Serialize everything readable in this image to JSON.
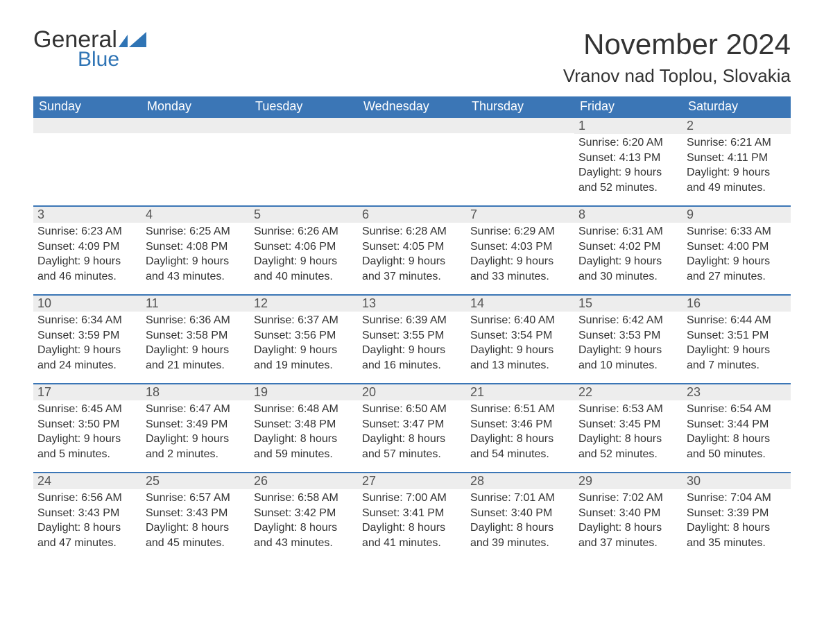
{
  "logo": {
    "word1": "General",
    "word2": "Blue"
  },
  "title": "November 2024",
  "location": "Vranov nad Toplou, Slovakia",
  "colors": {
    "header_bg": "#3b76b6",
    "header_text": "#ffffff",
    "daynum_bg": "#ededed",
    "text": "#333333",
    "logo_blue": "#2f74b5",
    "page_bg": "#ffffff"
  },
  "weekdays": [
    "Sunday",
    "Monday",
    "Tuesday",
    "Wednesday",
    "Thursday",
    "Friday",
    "Saturday"
  ],
  "weeks": [
    [
      {
        "empty": true
      },
      {
        "empty": true
      },
      {
        "empty": true
      },
      {
        "empty": true
      },
      {
        "empty": true
      },
      {
        "day": "1",
        "sunrise": "Sunrise: 6:20 AM",
        "sunset": "Sunset: 4:13 PM",
        "dl1": "Daylight: 9 hours",
        "dl2": "and 52 minutes."
      },
      {
        "day": "2",
        "sunrise": "Sunrise: 6:21 AM",
        "sunset": "Sunset: 4:11 PM",
        "dl1": "Daylight: 9 hours",
        "dl2": "and 49 minutes."
      }
    ],
    [
      {
        "day": "3",
        "sunrise": "Sunrise: 6:23 AM",
        "sunset": "Sunset: 4:09 PM",
        "dl1": "Daylight: 9 hours",
        "dl2": "and 46 minutes."
      },
      {
        "day": "4",
        "sunrise": "Sunrise: 6:25 AM",
        "sunset": "Sunset: 4:08 PM",
        "dl1": "Daylight: 9 hours",
        "dl2": "and 43 minutes."
      },
      {
        "day": "5",
        "sunrise": "Sunrise: 6:26 AM",
        "sunset": "Sunset: 4:06 PM",
        "dl1": "Daylight: 9 hours",
        "dl2": "and 40 minutes."
      },
      {
        "day": "6",
        "sunrise": "Sunrise: 6:28 AM",
        "sunset": "Sunset: 4:05 PM",
        "dl1": "Daylight: 9 hours",
        "dl2": "and 37 minutes."
      },
      {
        "day": "7",
        "sunrise": "Sunrise: 6:29 AM",
        "sunset": "Sunset: 4:03 PM",
        "dl1": "Daylight: 9 hours",
        "dl2": "and 33 minutes."
      },
      {
        "day": "8",
        "sunrise": "Sunrise: 6:31 AM",
        "sunset": "Sunset: 4:02 PM",
        "dl1": "Daylight: 9 hours",
        "dl2": "and 30 minutes."
      },
      {
        "day": "9",
        "sunrise": "Sunrise: 6:33 AM",
        "sunset": "Sunset: 4:00 PM",
        "dl1": "Daylight: 9 hours",
        "dl2": "and 27 minutes."
      }
    ],
    [
      {
        "day": "10",
        "sunrise": "Sunrise: 6:34 AM",
        "sunset": "Sunset: 3:59 PM",
        "dl1": "Daylight: 9 hours",
        "dl2": "and 24 minutes."
      },
      {
        "day": "11",
        "sunrise": "Sunrise: 6:36 AM",
        "sunset": "Sunset: 3:58 PM",
        "dl1": "Daylight: 9 hours",
        "dl2": "and 21 minutes."
      },
      {
        "day": "12",
        "sunrise": "Sunrise: 6:37 AM",
        "sunset": "Sunset: 3:56 PM",
        "dl1": "Daylight: 9 hours",
        "dl2": "and 19 minutes."
      },
      {
        "day": "13",
        "sunrise": "Sunrise: 6:39 AM",
        "sunset": "Sunset: 3:55 PM",
        "dl1": "Daylight: 9 hours",
        "dl2": "and 16 minutes."
      },
      {
        "day": "14",
        "sunrise": "Sunrise: 6:40 AM",
        "sunset": "Sunset: 3:54 PM",
        "dl1": "Daylight: 9 hours",
        "dl2": "and 13 minutes."
      },
      {
        "day": "15",
        "sunrise": "Sunrise: 6:42 AM",
        "sunset": "Sunset: 3:53 PM",
        "dl1": "Daylight: 9 hours",
        "dl2": "and 10 minutes."
      },
      {
        "day": "16",
        "sunrise": "Sunrise: 6:44 AM",
        "sunset": "Sunset: 3:51 PM",
        "dl1": "Daylight: 9 hours",
        "dl2": "and 7 minutes."
      }
    ],
    [
      {
        "day": "17",
        "sunrise": "Sunrise: 6:45 AM",
        "sunset": "Sunset: 3:50 PM",
        "dl1": "Daylight: 9 hours",
        "dl2": "and 5 minutes."
      },
      {
        "day": "18",
        "sunrise": "Sunrise: 6:47 AM",
        "sunset": "Sunset: 3:49 PM",
        "dl1": "Daylight: 9 hours",
        "dl2": "and 2 minutes."
      },
      {
        "day": "19",
        "sunrise": "Sunrise: 6:48 AM",
        "sunset": "Sunset: 3:48 PM",
        "dl1": "Daylight: 8 hours",
        "dl2": "and 59 minutes."
      },
      {
        "day": "20",
        "sunrise": "Sunrise: 6:50 AM",
        "sunset": "Sunset: 3:47 PM",
        "dl1": "Daylight: 8 hours",
        "dl2": "and 57 minutes."
      },
      {
        "day": "21",
        "sunrise": "Sunrise: 6:51 AM",
        "sunset": "Sunset: 3:46 PM",
        "dl1": "Daylight: 8 hours",
        "dl2": "and 54 minutes."
      },
      {
        "day": "22",
        "sunrise": "Sunrise: 6:53 AM",
        "sunset": "Sunset: 3:45 PM",
        "dl1": "Daylight: 8 hours",
        "dl2": "and 52 minutes."
      },
      {
        "day": "23",
        "sunrise": "Sunrise: 6:54 AM",
        "sunset": "Sunset: 3:44 PM",
        "dl1": "Daylight: 8 hours",
        "dl2": "and 50 minutes."
      }
    ],
    [
      {
        "day": "24",
        "sunrise": "Sunrise: 6:56 AM",
        "sunset": "Sunset: 3:43 PM",
        "dl1": "Daylight: 8 hours",
        "dl2": "and 47 minutes."
      },
      {
        "day": "25",
        "sunrise": "Sunrise: 6:57 AM",
        "sunset": "Sunset: 3:43 PM",
        "dl1": "Daylight: 8 hours",
        "dl2": "and 45 minutes."
      },
      {
        "day": "26",
        "sunrise": "Sunrise: 6:58 AM",
        "sunset": "Sunset: 3:42 PM",
        "dl1": "Daylight: 8 hours",
        "dl2": "and 43 minutes."
      },
      {
        "day": "27",
        "sunrise": "Sunrise: 7:00 AM",
        "sunset": "Sunset: 3:41 PM",
        "dl1": "Daylight: 8 hours",
        "dl2": "and 41 minutes."
      },
      {
        "day": "28",
        "sunrise": "Sunrise: 7:01 AM",
        "sunset": "Sunset: 3:40 PM",
        "dl1": "Daylight: 8 hours",
        "dl2": "and 39 minutes."
      },
      {
        "day": "29",
        "sunrise": "Sunrise: 7:02 AM",
        "sunset": "Sunset: 3:40 PM",
        "dl1": "Daylight: 8 hours",
        "dl2": "and 37 minutes."
      },
      {
        "day": "30",
        "sunrise": "Sunrise: 7:04 AM",
        "sunset": "Sunset: 3:39 PM",
        "dl1": "Daylight: 8 hours",
        "dl2": "and 35 minutes."
      }
    ]
  ]
}
